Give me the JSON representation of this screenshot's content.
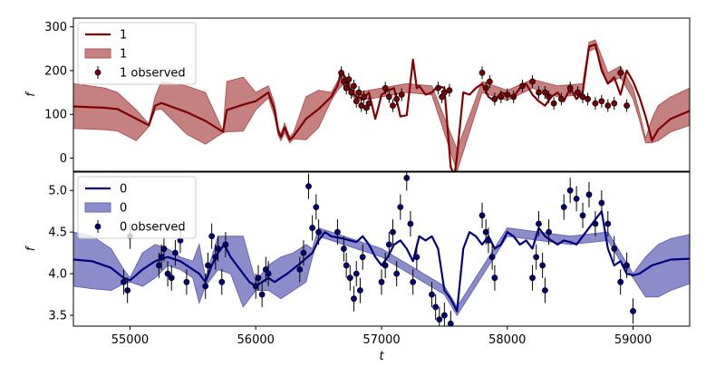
{
  "chart_data": [
    {
      "type": "line",
      "xlim": [
        54550,
        59450
      ],
      "ylim": [
        -30,
        320
      ],
      "yticks": [
        0,
        100,
        200,
        300
      ],
      "ylabel": "f",
      "xlabel": "",
      "grid": false,
      "legend": {
        "placement": "top-left",
        "entries": [
          "1",
          "1",
          "1 observed"
        ]
      },
      "colors": {
        "line": "#7f0000",
        "band": "#b25555",
        "marker": "#7f0000"
      },
      "series": [
        {
          "name": "1",
          "kind": "model_mean",
          "x": [
            54550,
            54800,
            54900,
            55050,
            55150,
            55200,
            55250,
            55450,
            55600,
            55740,
            55770,
            55900,
            56000,
            56100,
            56150,
            56180,
            56200,
            56230,
            56270,
            56300,
            56400,
            56500,
            56600,
            56650,
            56680,
            56720,
            56750,
            56800,
            56850,
            56900,
            56950,
            56970,
            57000,
            57050,
            57100,
            57150,
            57200,
            57250,
            57280,
            57300,
            57350,
            57400,
            57450,
            57500,
            57550,
            57580,
            57600,
            57650,
            57700,
            57750,
            57800,
            57850,
            57900,
            57950,
            58000,
            58050,
            58100,
            58150,
            58200,
            58250,
            58300,
            58350,
            58400,
            58450,
            58500,
            58550,
            58600,
            58650,
            58700,
            58750,
            58800,
            58850,
            58900,
            58950,
            59000,
            59050,
            59100,
            59150,
            59200,
            59300,
            59450
          ],
          "y": [
            118,
            115,
            112,
            90,
            75,
            120,
            126,
            105,
            85,
            60,
            110,
            122,
            130,
            150,
            110,
            60,
            48,
            70,
            42,
            50,
            90,
            112,
            140,
            165,
            200,
            180,
            155,
            140,
            135,
            150,
            90,
            110,
            145,
            155,
            160,
            95,
            98,
            225,
            160,
            165,
            145,
            150,
            165,
            160,
            -20,
            -40,
            5,
            150,
            145,
            160,
            170,
            140,
            130,
            150,
            145,
            140,
            160,
            170,
            145,
            130,
            120,
            140,
            150,
            130,
            160,
            135,
            150,
            255,
            260,
            200,
            170,
            185,
            145,
            200,
            175,
            140,
            95,
            40,
            65,
            90,
            108
          ]
        },
        {
          "name": "1",
          "kind": "model_band",
          "x": [
            54550,
            54800,
            54900,
            55050,
            55150,
            55200,
            55250,
            55450,
            55600,
            55740,
            55770,
            55900,
            56000,
            56100,
            56150,
            56180,
            56200,
            56230,
            56270,
            56300,
            56400,
            56500,
            56600,
            56650,
            56700,
            56800,
            57000,
            57200,
            57400,
            57600,
            57800,
            58000,
            58200,
            58400,
            58600,
            58650,
            58700,
            58800,
            58900,
            59000,
            59050,
            59100,
            59150,
            59200,
            59300,
            59450
          ],
          "upper": [
            170,
            160,
            150,
            110,
            78,
            140,
            175,
            165,
            150,
            62,
            175,
            185,
            150,
            165,
            125,
            68,
            55,
            80,
            48,
            58,
            140,
            155,
            150,
            175,
            190,
            150,
            160,
            170,
            165,
            20,
            175,
            155,
            180,
            165,
            170,
            265,
            270,
            195,
            210,
            160,
            105,
            45,
            90,
            120,
            140,
            160
          ],
          "lower": [
            68,
            65,
            62,
            40,
            72,
            110,
            112,
            55,
            32,
            58,
            60,
            62,
            110,
            138,
            95,
            52,
            40,
            58,
            35,
            44,
            42,
            70,
            132,
            155,
            170,
            130,
            140,
            150,
            145,
            -30,
            150,
            132,
            160,
            140,
            145,
            245,
            250,
            170,
            185,
            135,
            88,
            35,
            35,
            40,
            60,
            75
          ]
        },
        {
          "name": "1 observed",
          "kind": "observations",
          "x": [
            56680,
            56700,
            56720,
            56740,
            56760,
            56780,
            56800,
            56820,
            56840,
            56860,
            56880,
            56900,
            57030,
            57060,
            57090,
            57120,
            57160,
            57450,
            57480,
            57500,
            57540,
            57800,
            57830,
            57860,
            57900,
            57950,
            58000,
            58050,
            58120,
            58200,
            58250,
            58300,
            58330,
            58370,
            58430,
            58500,
            58560,
            58600,
            58640,
            58700,
            58750,
            58800,
            58850,
            58900,
            58950
          ],
          "y": [
            195,
            175,
            160,
            180,
            150,
            165,
            130,
            150,
            120,
            140,
            115,
            125,
            160,
            140,
            120,
            135,
            145,
            160,
            140,
            150,
            155,
            195,
            160,
            175,
            135,
            140,
            145,
            140,
            165,
            175,
            150,
            150,
            140,
            125,
            135,
            160,
            150,
            140,
            135,
            125,
            130,
            120,
            125,
            195,
            120
          ]
        }
      ]
    },
    {
      "type": "line",
      "xlim": [
        54550,
        59450
      ],
      "ylim": [
        3.37,
        5.22
      ],
      "yticks": [
        3.5,
        4.0,
        4.5,
        5.0
      ],
      "ylabel": "f",
      "xlabel": "t",
      "xticks": [
        55000,
        56000,
        57000,
        58000,
        59000
      ],
      "grid": false,
      "legend": {
        "placement": "top-left",
        "entries": [
          "0",
          "0",
          "0 observed"
        ]
      },
      "colors": {
        "line": "#00007f",
        "band": "#6666b8",
        "marker": "#00007f"
      },
      "series": [
        {
          "name": "0",
          "kind": "model_mean",
          "x": [
            54550,
            54700,
            54850,
            54950,
            55000,
            55100,
            55200,
            55300,
            55400,
            55500,
            55550,
            55600,
            55650,
            55700,
            55750,
            55800,
            55900,
            55950,
            56000,
            56050,
            56100,
            56150,
            56250,
            56350,
            56450,
            56500,
            56550,
            56600,
            56700,
            56800,
            56850,
            56900,
            56950,
            57000,
            57050,
            57100,
            57150,
            57200,
            57250,
            57300,
            57350,
            57400,
            57450,
            57500,
            57550,
            57600,
            57650,
            57700,
            57750,
            57800,
            57850,
            57900,
            57950,
            58000,
            58050,
            58100,
            58150,
            58200,
            58250,
            58300,
            58350,
            58400,
            58450,
            58500,
            58550,
            58600,
            58650,
            58700,
            58750,
            58800,
            58850,
            58900,
            58950,
            59000,
            59050,
            59150,
            59300,
            59450
          ],
          "y": [
            4.17,
            4.15,
            4.07,
            3.95,
            3.92,
            4.05,
            4.15,
            4.2,
            4.15,
            4.05,
            4.0,
            3.9,
            4.1,
            4.25,
            4.35,
            4.2,
            4.0,
            3.9,
            3.85,
            3.9,
            3.95,
            3.9,
            4.0,
            4.12,
            4.25,
            4.4,
            4.5,
            4.45,
            4.42,
            4.38,
            4.45,
            4.35,
            4.2,
            4.1,
            4.2,
            4.35,
            4.4,
            4.3,
            4.15,
            4.45,
            4.4,
            4.45,
            4.3,
            3.8,
            3.7,
            3.55,
            4.3,
            4.5,
            4.45,
            4.35,
            4.45,
            4.3,
            4.35,
            4.5,
            4.45,
            4.35,
            4.4,
            4.3,
            4.55,
            4.45,
            4.4,
            4.35,
            4.4,
            4.38,
            4.35,
            4.45,
            4.55,
            4.65,
            4.75,
            4.3,
            4.1,
            4.15,
            4.0,
            3.98,
            4.0,
            4.1,
            4.17,
            4.18
          ]
        },
        {
          "name": "0",
          "kind": "model_band",
          "x": [
            54550,
            54700,
            54850,
            54950,
            55000,
            55100,
            55200,
            55300,
            55400,
            55500,
            55550,
            55600,
            55700,
            55800,
            55900,
            56000,
            56100,
            56200,
            56300,
            56400,
            56450,
            56500,
            57000,
            57500,
            57600,
            58000,
            58500,
            58800,
            58900,
            59000,
            59100,
            59200,
            59300,
            59450
          ],
          "upper": [
            4.5,
            4.45,
            4.3,
            4.05,
            3.95,
            4.25,
            4.35,
            4.3,
            4.2,
            4.15,
            4.35,
            3.95,
            4.45,
            4.45,
            4.45,
            3.9,
            4.1,
            4.2,
            4.25,
            4.35,
            4.3,
            4.55,
            4.3,
            3.85,
            3.6,
            4.55,
            4.45,
            4.5,
            4.25,
            4.0,
            4.2,
            4.35,
            4.42,
            4.47
          ],
          "lower": [
            3.85,
            3.82,
            3.8,
            3.88,
            3.9,
            3.85,
            3.95,
            4.1,
            4.05,
            3.95,
            3.65,
            3.85,
            4.05,
            4.0,
            3.6,
            3.8,
            3.8,
            3.7,
            3.8,
            3.9,
            4.2,
            4.45,
            4.2,
            3.75,
            3.5,
            4.45,
            4.35,
            4.4,
            4.15,
            3.95,
            3.72,
            3.72,
            3.8,
            3.88
          ]
        },
        {
          "name": "0 observed",
          "kind": "observations",
          "x": [
            54950,
            54980,
            55000,
            55230,
            55250,
            55270,
            55300,
            55330,
            55360,
            55400,
            55450,
            55600,
            55620,
            55650,
            55680,
            55700,
            55730,
            55760,
            56000,
            56020,
            56050,
            56080,
            56100,
            56350,
            56380,
            56420,
            56450,
            56480,
            56500,
            56650,
            56700,
            56720,
            56750,
            56780,
            56800,
            56830,
            56850,
            57000,
            57030,
            57060,
            57090,
            57120,
            57150,
            57200,
            57230,
            57250,
            57280,
            57400,
            57430,
            57460,
            57500,
            57550,
            57800,
            57830,
            57850,
            57880,
            57900,
            58200,
            58230,
            58250,
            58280,
            58300,
            58330,
            58450,
            58500,
            58550,
            58600,
            58650,
            58700,
            58750,
            58800,
            58850,
            58900,
            58950,
            59000
          ],
          "y": [
            3.9,
            3.8,
            4.45,
            4.1,
            4.2,
            4.3,
            4.0,
            3.95,
            4.25,
            4.4,
            3.9,
            3.85,
            4.1,
            4.45,
            4.2,
            4.3,
            3.9,
            4.35,
            3.85,
            3.95,
            3.75,
            4.05,
            4.0,
            4.05,
            4.25,
            5.05,
            4.55,
            4.8,
            4.5,
            4.5,
            4.3,
            4.1,
            3.95,
            3.7,
            4.0,
            3.8,
            4.2,
            3.9,
            4.1,
            4.35,
            4.5,
            4.0,
            4.8,
            5.15,
            4.6,
            3.9,
            4.2,
            3.75,
            3.6,
            3.45,
            3.5,
            3.4,
            4.7,
            4.5,
            4.4,
            4.2,
            3.95,
            3.95,
            4.2,
            4.6,
            4.1,
            3.8,
            4.5,
            4.8,
            5.0,
            4.9,
            4.7,
            4.95,
            4.6,
            4.85,
            4.6,
            4.3,
            3.9,
            4.1,
            3.55
          ]
        }
      ]
    }
  ]
}
